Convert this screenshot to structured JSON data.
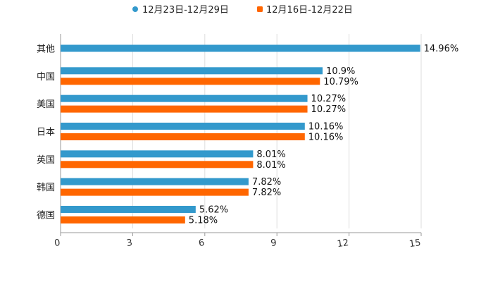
{
  "chart_data": {
    "type": "bar",
    "orientation": "horizontal",
    "title": "",
    "xlabel": "",
    "ylabel": "",
    "xlim": [
      0,
      15
    ],
    "x_ticks": [
      "0",
      "3",
      "6",
      "9",
      "12",
      "15"
    ],
    "grid": true,
    "legend_position": "top-center",
    "categories": [
      "其他",
      "中国",
      "美国",
      "日本",
      "英国",
      "韩国",
      "德国"
    ],
    "series": [
      {
        "name": "12月23日-12月29日",
        "color": "#3399cc",
        "values": [
          14.96,
          10.9,
          10.27,
          10.16,
          8.01,
          7.82,
          5.62
        ],
        "labels": [
          "14.96%",
          "10.9%",
          "10.27%",
          "10.16%",
          "8.01%",
          "7.82%",
          "5.62%"
        ]
      },
      {
        "name": "12月16日-12月22日",
        "color": "#ff6600",
        "values": [
          null,
          10.79,
          10.27,
          10.16,
          8.01,
          7.82,
          5.18
        ],
        "labels": [
          "",
          "10.79%",
          "10.27%",
          "10.16%",
          "8.01%",
          "7.82%",
          "5.18%"
        ]
      }
    ]
  }
}
